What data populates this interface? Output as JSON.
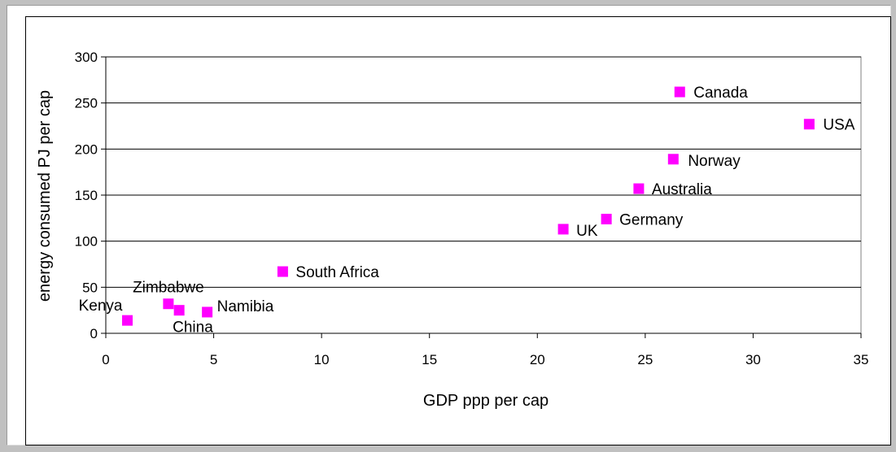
{
  "chart_data": {
    "type": "scatter",
    "xlabel": "GDP ppp per cap",
    "ylabel": "energy consumed PJ per cap",
    "xlim": [
      0,
      35
    ],
    "ylim": [
      0,
      300
    ],
    "x_ticks": [
      0,
      5,
      10,
      15,
      20,
      25,
      30,
      35
    ],
    "y_ticks": [
      0,
      50,
      100,
      150,
      200,
      250,
      300
    ],
    "grid": "horizontal",
    "marker_color": "#ff00ff",
    "points": [
      {
        "label": "Kenya",
        "x": 1.0,
        "y": 14
      },
      {
        "label": "Zimbabwe",
        "x": 2.9,
        "y": 32
      },
      {
        "label": "China",
        "x": 3.4,
        "y": 25
      },
      {
        "label": "Namibia",
        "x": 4.7,
        "y": 23
      },
      {
        "label": "South Africa",
        "x": 8.2,
        "y": 67
      },
      {
        "label": "UK",
        "x": 21.2,
        "y": 113
      },
      {
        "label": "Germany",
        "x": 23.2,
        "y": 124
      },
      {
        "label": "Australia",
        "x": 24.7,
        "y": 157
      },
      {
        "label": "Norway",
        "x": 26.3,
        "y": 189
      },
      {
        "label": "Canada",
        "x": 26.6,
        "y": 262
      },
      {
        "label": "USA",
        "x": 32.6,
        "y": 227
      }
    ]
  }
}
